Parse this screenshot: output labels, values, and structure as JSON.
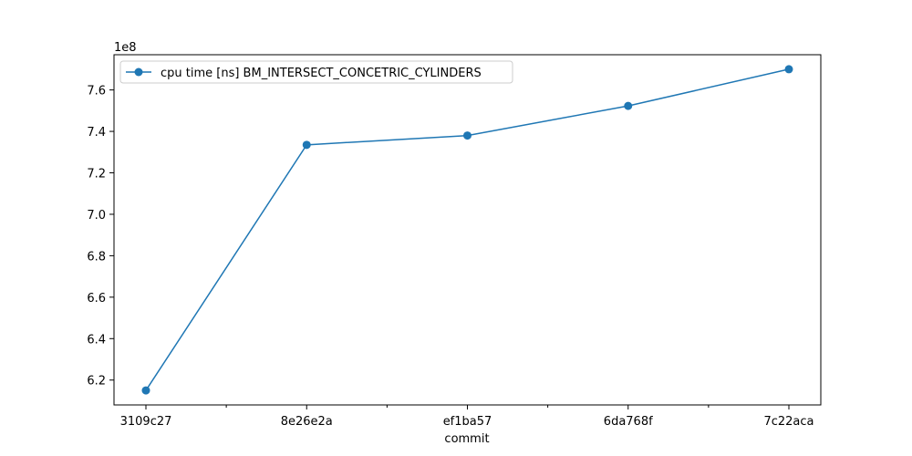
{
  "chart_data": {
    "type": "line",
    "title": "",
    "xlabel": "commit",
    "ylabel": "",
    "y_offset_label": "1e8",
    "categories": [
      "3109c27",
      "8e26e2a",
      "ef1ba57",
      "6da768f",
      "7c22aca"
    ],
    "series": [
      {
        "name": "cpu time [ns]  BM_INTERSECT_CONCETRIC_CYLINDERS",
        "values": [
          6.15,
          7.335,
          7.38,
          7.523,
          7.7
        ],
        "color": "#1f77b4",
        "marker": "circle"
      }
    ],
    "yticks": [
      "6.2",
      "6.4",
      "6.6",
      "6.8",
      "7.0",
      "7.2",
      "7.4",
      "7.6"
    ],
    "ylim": [
      6.08,
      7.77
    ],
    "grid": false,
    "legend_position": "upper-left"
  }
}
